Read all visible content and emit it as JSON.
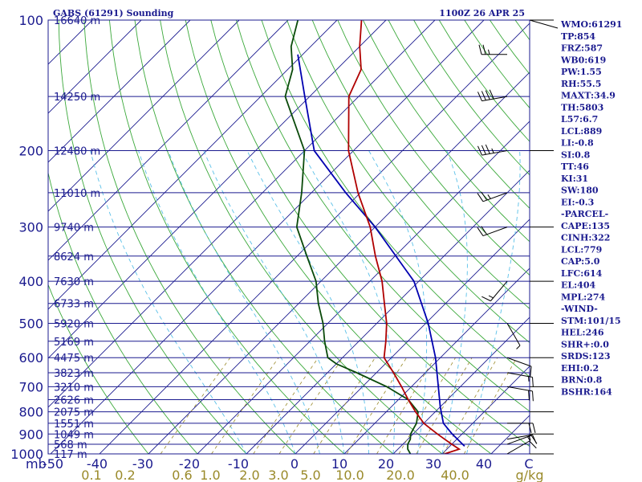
{
  "chart_data": {
    "type": "skew-t sounding",
    "title_left": "GABS (61291) Sounding",
    "title_right": "1100Z 26 APR 25",
    "pressure_levels": [
      100,
      200,
      300,
      400,
      500,
      600,
      700,
      800,
      900,
      1000
    ],
    "pressure_label_prefix": "mb",
    "height_levels": [
      {
        "p": 100,
        "label": "16640 m"
      },
      {
        "p": 150,
        "label": "14250 m"
      },
      {
        "p": 200,
        "label": "12480 m"
      },
      {
        "p": 250,
        "label": "11010 m"
      },
      {
        "p": 300,
        "label": "9740 m"
      },
      {
        "p": 350,
        "label": "8624 m"
      },
      {
        "p": 400,
        "label": "7630 m"
      },
      {
        "p": 450,
        "label": "6733 m"
      },
      {
        "p": 500,
        "label": "5920 m"
      },
      {
        "p": 550,
        "label": "5169 m"
      },
      {
        "p": 600,
        "label": "4475 m"
      },
      {
        "p": 650,
        "label": "3823 m"
      },
      {
        "p": 700,
        "label": "3210 m"
      },
      {
        "p": 750,
        "label": "2626 m"
      },
      {
        "p": 800,
        "label": "2075 m"
      },
      {
        "p": 850,
        "label": "1551 m"
      },
      {
        "p": 900,
        "label": "1049 m"
      },
      {
        "p": 950,
        "label": "568 m"
      },
      {
        "p": 1000,
        "label": "117 m"
      }
    ],
    "temperature_ticks": [
      "-50",
      "-40",
      "-30",
      "-20",
      "-10",
      "0",
      "10",
      "20",
      "30",
      "40",
      "C"
    ],
    "mixing_ratio_ticks": [
      "0.1",
      "0.2",
      "0.6",
      "1.0",
      "2.0",
      "3.0",
      "5.0",
      "10.0",
      "20.0",
      "40.0",
      "g/kg"
    ],
    "temperature_profile": [
      {
        "p": 1000,
        "t": 30.5
      },
      {
        "p": 975,
        "t": 32.5
      },
      {
        "p": 950,
        "t": 30.0
      },
      {
        "p": 925,
        "t": 27.5
      },
      {
        "p": 900,
        "t": 25.0
      },
      {
        "p": 875,
        "t": 22.5
      },
      {
        "p": 850,
        "t": 20.0
      },
      {
        "p": 800,
        "t": 16.0
      },
      {
        "p": 750,
        "t": 12.0
      },
      {
        "p": 700,
        "t": 8.0
      },
      {
        "p": 650,
        "t": 3.5
      },
      {
        "p": 600,
        "t": -1.5
      },
      {
        "p": 550,
        "t": -4.5
      },
      {
        "p": 500,
        "t": -8.0
      },
      {
        "p": 450,
        "t": -12.5
      },
      {
        "p": 400,
        "t": -17.5
      },
      {
        "p": 350,
        "t": -24.0
      },
      {
        "p": 300,
        "t": -31.0
      },
      {
        "p": 250,
        "t": -40.5
      },
      {
        "p": 200,
        "t": -51.0
      },
      {
        "p": 150,
        "t": -62.0
      },
      {
        "p": 130,
        "t": -65.0
      },
      {
        "p": 115,
        "t": -70.0
      },
      {
        "p": 100,
        "t": -75.0
      }
    ],
    "dewpoint_profile": [
      {
        "p": 1000,
        "t": 23.5
      },
      {
        "p": 975,
        "t": 22.0
      },
      {
        "p": 950,
        "t": 21.0
      },
      {
        "p": 925,
        "t": 20.5
      },
      {
        "p": 900,
        "t": 19.5
      },
      {
        "p": 875,
        "t": 19.0
      },
      {
        "p": 850,
        "t": 18.5
      },
      {
        "p": 800,
        "t": 16.5
      },
      {
        "p": 750,
        "t": 12.0
      },
      {
        "p": 700,
        "t": 5.0
      },
      {
        "p": 650,
        "t": -4.0
      },
      {
        "p": 620,
        "t": -10.0
      },
      {
        "p": 600,
        "t": -13.0
      },
      {
        "p": 550,
        "t": -17.0
      },
      {
        "p": 500,
        "t": -21.0
      },
      {
        "p": 450,
        "t": -26.0
      },
      {
        "p": 400,
        "t": -31.0
      },
      {
        "p": 350,
        "t": -38.0
      },
      {
        "p": 300,
        "t": -46.0
      },
      {
        "p": 250,
        "t": -52.0
      },
      {
        "p": 200,
        "t": -60.0
      },
      {
        "p": 150,
        "t": -75.0
      },
      {
        "p": 130,
        "t": -79.0
      },
      {
        "p": 115,
        "t": -84.0
      },
      {
        "p": 100,
        "t": -88.0
      }
    ],
    "parcel_profile": [
      {
        "p": 960,
        "t": 33.0
      },
      {
        "p": 900,
        "t": 28.0
      },
      {
        "p": 850,
        "t": 24.0
      },
      {
        "p": 779,
        "t": 20.0
      },
      {
        "p": 700,
        "t": 15.5
      },
      {
        "p": 600,
        "t": 9.0
      },
      {
        "p": 500,
        "t": 0.5
      },
      {
        "p": 400,
        "t": -11.0
      },
      {
        "p": 300,
        "t": -30.0
      },
      {
        "p": 250,
        "t": -43.0
      },
      {
        "p": 200,
        "t": -58.0
      },
      {
        "p": 150,
        "t": -71.0
      },
      {
        "p": 120,
        "t": -81.0
      }
    ],
    "wind_levels": [
      {
        "p": 1000,
        "dir": 60,
        "spd": 10
      },
      {
        "p": 950,
        "dir": 70,
        "spd": 15
      },
      {
        "p": 925,
        "dir": 80,
        "spd": 15
      },
      {
        "p": 850,
        "dir": 90,
        "spd": 20
      },
      {
        "p": 700,
        "dir": 100,
        "spd": 20
      },
      {
        "p": 650,
        "dir": 100,
        "spd": 15
      },
      {
        "p": 600,
        "dir": 110,
        "spd": 10
      },
      {
        "p": 500,
        "dir": 150,
        "spd": 5
      },
      {
        "p": 400,
        "dir": 220,
        "spd": 15
      },
      {
        "p": 300,
        "dir": 250,
        "spd": 20
      },
      {
        "p": 250,
        "dir": 250,
        "spd": 25
      },
      {
        "p": 200,
        "dir": 260,
        "spd": 35
      },
      {
        "p": 150,
        "dir": 260,
        "spd": 40
      },
      {
        "p": 120,
        "dir": 270,
        "spd": 25
      }
    ],
    "parameters": [
      "WMO:61291",
      "TP:854",
      "FRZ:587",
      "WB0:619",
      "PW:1.55",
      "RH:55.5",
      "MAXT:34.9",
      "TH:5803",
      "L57:6.7",
      "LCL:889",
      "LI:-0.8",
      "SI:0.8",
      "TT:46",
      "KI:31",
      "SW:180",
      "EI:-0.3",
      "-PARCEL-",
      "CAPE:135",
      "CINH:322",
      "LCL:779",
      "CAP:5.0",
      "LFC:614",
      "EL:404",
      "MPL:274",
      "-WIND-",
      "STM:101/15",
      "HEL:246",
      "SHR+:0.0",
      "SRDS:123",
      "EHI:0.2",
      "BRN:0.8",
      "BSHR:164"
    ],
    "colors": {
      "frame": "#1b1b8f",
      "isobar": "#1b1b8f",
      "isotherm": "#1b1b8f",
      "dry_adiabat": "#3aa83a",
      "moist_adiabat": "#5ac0e8",
      "mixing_ratio": "#9a8a2a",
      "temperature": "#b00000",
      "dewpoint": "#0a4a0a",
      "parcel": "#0000b0",
      "wind": "#000000",
      "mixing_ratio_text": "#9a8a2a"
    }
  }
}
